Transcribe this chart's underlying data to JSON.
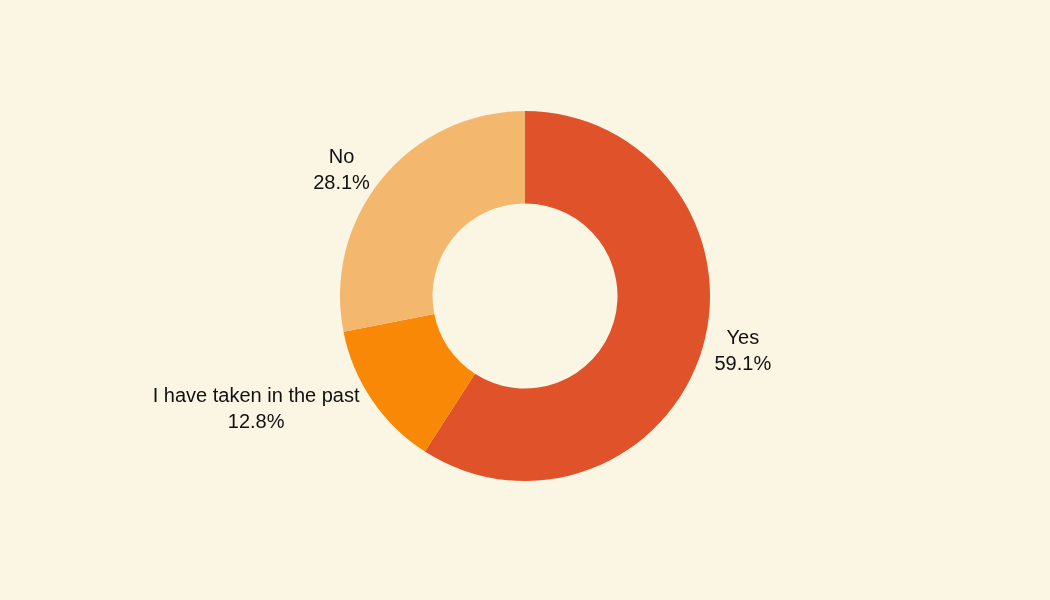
{
  "chart_data": {
    "type": "donut",
    "categories": [
      "Yes",
      "I have taken in the past",
      "No"
    ],
    "values": [
      59.1,
      12.8,
      28.1
    ],
    "colors": [
      "#df522a",
      "#f88806",
      "#f3b86d"
    ],
    "value_labels": [
      "59.1%",
      "12.8%",
      "28.1%"
    ]
  }
}
